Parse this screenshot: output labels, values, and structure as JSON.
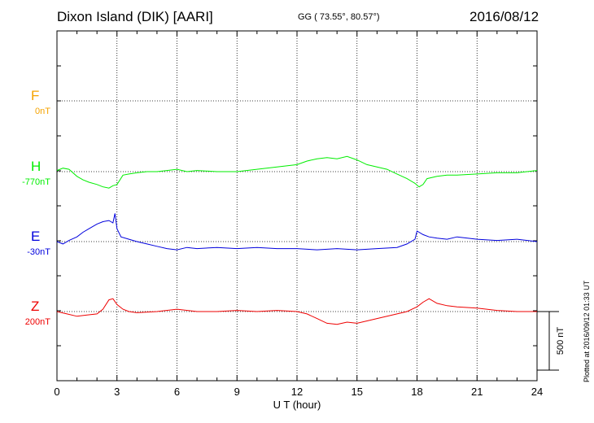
{
  "header": {
    "station": "Dixon Island (DIK)  [AARI]",
    "coords": "GG ( 73.55°,  80.57°)",
    "date": "2016/08/12"
  },
  "side_note": "Plotted at 2016/09/12 01:33 UT",
  "chart_data": {
    "type": "line",
    "xlabel": "U T (hour)",
    "xlim": [
      0,
      24
    ],
    "xticks": [
      "0",
      "3",
      "6",
      "9",
      "12",
      "15",
      "18",
      "21",
      "24"
    ],
    "scale_bar_label": "500 nT",
    "scale_bar_nT": 500,
    "series": [
      {
        "name": "F",
        "baseline_label": "0nT",
        "color": "#f5a300",
        "x": [],
        "y": []
      },
      {
        "name": "H",
        "baseline_label": "-770nT",
        "color": "#00ee00",
        "x": [
          0,
          0.3,
          0.6,
          1.0,
          1.3,
          1.6,
          2.0,
          2.3,
          2.6,
          2.8,
          3.0,
          3.3,
          3.6,
          4.0,
          4.5,
          5.0,
          5.5,
          6.0,
          6.5,
          7.0,
          8.0,
          9.0,
          10.0,
          11.0,
          12.0,
          12.5,
          13.0,
          13.5,
          14.0,
          14.5,
          15.0,
          15.5,
          16.0,
          16.5,
          17.0,
          17.5,
          17.9,
          18.1,
          18.3,
          18.5,
          19.0,
          19.5,
          20.0,
          21.0,
          22.0,
          23.0,
          24.0
        ],
        "y": [
          10,
          30,
          20,
          -40,
          -70,
          -90,
          -110,
          -130,
          -140,
          -120,
          -110,
          -30,
          -20,
          -10,
          0,
          0,
          10,
          20,
          0,
          10,
          0,
          0,
          20,
          40,
          60,
          90,
          110,
          120,
          110,
          130,
          100,
          60,
          40,
          20,
          -20,
          -60,
          -100,
          -130,
          -110,
          -60,
          -40,
          -30,
          -30,
          -20,
          -10,
          -10,
          10
        ]
      },
      {
        "name": "E",
        "baseline_label": "-30nT",
        "color": "#0000dd",
        "x": [
          0,
          0.3,
          0.6,
          1.0,
          1.3,
          1.6,
          2.0,
          2.3,
          2.6,
          2.8,
          2.9,
          3.0,
          3.2,
          3.6,
          4.0,
          4.5,
          5.0,
          5.5,
          6.0,
          6.5,
          7.0,
          8.0,
          9.0,
          10.0,
          11.0,
          12.0,
          13.0,
          14.0,
          15.0,
          16.0,
          17.0,
          17.5,
          17.9,
          18.0,
          18.3,
          18.6,
          19.0,
          19.5,
          20.0,
          21.0,
          22.0,
          23.0,
          24.0
        ],
        "y": [
          0,
          -20,
          10,
          40,
          80,
          110,
          150,
          170,
          180,
          160,
          240,
          110,
          40,
          20,
          0,
          -20,
          -40,
          -60,
          -70,
          -50,
          -60,
          -50,
          -60,
          -50,
          -60,
          -60,
          -70,
          -60,
          -70,
          -60,
          -50,
          -20,
          20,
          90,
          60,
          40,
          30,
          20,
          40,
          20,
          10,
          20,
          0
        ]
      },
      {
        "name": "Z",
        "baseline_label": "200nT",
        "color": "#ee0000",
        "x": [
          0,
          0.5,
          1.0,
          1.5,
          2.0,
          2.3,
          2.6,
          2.8,
          3.0,
          3.3,
          3.6,
          4.0,
          5.0,
          6.0,
          7.0,
          8.0,
          9.0,
          10.0,
          11.0,
          12.0,
          12.5,
          13.0,
          13.5,
          14.0,
          14.5,
          15.0,
          16.0,
          17.0,
          17.5,
          18.0,
          18.3,
          18.6,
          19.0,
          19.5,
          20.0,
          21.0,
          22.0,
          23.0,
          24.0
        ],
        "y": [
          0,
          -20,
          -40,
          -30,
          -20,
          20,
          100,
          110,
          60,
          20,
          0,
          -10,
          0,
          20,
          0,
          0,
          10,
          0,
          10,
          0,
          -20,
          -60,
          -100,
          -110,
          -90,
          -100,
          -60,
          -20,
          0,
          40,
          80,
          110,
          70,
          50,
          40,
          30,
          10,
          0,
          0
        ]
      }
    ]
  }
}
